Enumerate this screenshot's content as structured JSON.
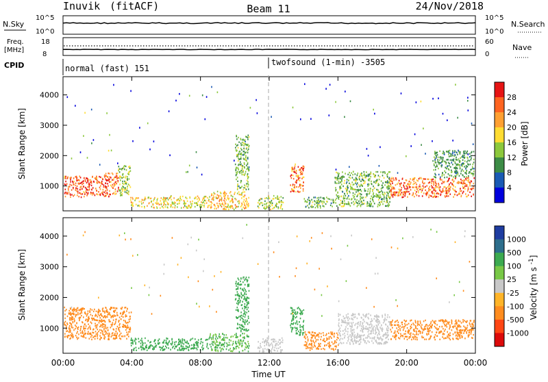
{
  "header": {
    "site": "Inuvik",
    "mode": "(fitACF)",
    "beam": "Beam 11",
    "date": "24/Nov/2018"
  },
  "top_panels": {
    "nsky_label": "N.Sky",
    "nsky_ticks": [
      "10^5",
      "10^0"
    ],
    "nsearch_label": "N.Search",
    "nsearch_ticks": [
      "10^5",
      "10^0"
    ],
    "freq_label_line1": "Freq.",
    "freq_label_line2": "[MHz]",
    "freq_ticks": [
      "18",
      "8"
    ],
    "nave_label": "Nave",
    "nave_ticks": [
      "60",
      "0"
    ],
    "cpid_label": "CPID",
    "cpid_segments": [
      {
        "name": "normal (fast) 151",
        "start_hour": 0
      },
      {
        "name": "twofsound (1-min) -3505",
        "start_hour": 12
      }
    ]
  },
  "chart_data": [
    {
      "type": "heatmap",
      "title": "Power",
      "xlabel": "",
      "ylabel": "Slant Range [km]",
      "xlim": [
        "00:00",
        "24:00"
      ],
      "ylim": [
        180,
        4600
      ],
      "yticks": [
        1000,
        2000,
        3000,
        4000
      ],
      "colorbar": {
        "label": "Power [dB]",
        "ticks": [
          28,
          24,
          20,
          16,
          12,
          8,
          4
        ],
        "range": [
          0,
          32
        ],
        "colors": [
          "#0000dd",
          "#1a5ab4",
          "#3c8c46",
          "#8cc83c",
          "#ffdc32",
          "#ffa032",
          "#ff6420",
          "#e61414"
        ]
      },
      "regions": [
        {
          "t": [
            0.05,
            1.2
          ],
          "r": [
            650,
            1350
          ],
          "value": 26
        },
        {
          "t": [
            1.2,
            2.1
          ],
          "r": [
            700,
            1350
          ],
          "value": 26
        },
        {
          "t": [
            2.1,
            3.2
          ],
          "r": [
            650,
            1450
          ],
          "value": 25
        },
        {
          "t": [
            3.2,
            3.9
          ],
          "r": [
            700,
            1700
          ],
          "value": 14
        },
        {
          "t": [
            3.9,
            6.2
          ],
          "r": [
            300,
            650
          ],
          "value": 18
        },
        {
          "t": [
            6.2,
            8.5
          ],
          "r": [
            300,
            700
          ],
          "value": 17
        },
        {
          "t": [
            8.5,
            10.8
          ],
          "r": [
            250,
            850
          ],
          "value": 20
        },
        {
          "t": [
            10.0,
            10.8
          ],
          "r": [
            900,
            2700
          ],
          "value": 13
        },
        {
          "t": [
            11.3,
            12.8
          ],
          "r": [
            250,
            700
          ],
          "value": 15
        },
        {
          "t": [
            13.2,
            14.0
          ],
          "r": [
            800,
            1700
          ],
          "value": 25
        },
        {
          "t": [
            14.0,
            15.8
          ],
          "r": [
            300,
            650
          ],
          "value": 12
        },
        {
          "t": [
            15.8,
            19.0
          ],
          "r": [
            350,
            1500
          ],
          "value": 13
        },
        {
          "t": [
            19.0,
            23.9
          ],
          "r": [
            650,
            1300
          ],
          "value": 25
        },
        {
          "t": [
            21.5,
            23.9
          ],
          "r": [
            1300,
            2200
          ],
          "value": 11
        }
      ]
    },
    {
      "type": "heatmap",
      "title": "Velocity",
      "xlabel": "Time UT",
      "ylabel": "Slant Range [km]",
      "xlim": [
        "00:00",
        "24:00"
      ],
      "xticks": [
        "00:00",
        "04:00",
        "08:00",
        "12:00",
        "16:00",
        "20:00",
        "00:00"
      ],
      "ylim": [
        180,
        4600
      ],
      "yticks": [
        1000,
        2000,
        3000,
        4000
      ],
      "colorbar": {
        "label": "Velocity [m s^-1]",
        "ticks": [
          "1000",
          "500",
          "100",
          "25",
          "-25",
          "-100",
          "-500",
          "-1000"
        ],
        "colors": [
          "#1e3ca0",
          "#2d6e8c",
          "#3caa50",
          "#78c846",
          "#c8c8c8",
          "#ffb428",
          "#ff8c1e",
          "#ff4614",
          "#dc0a0a"
        ]
      },
      "regions": [
        {
          "t": [
            0.05,
            3.9
          ],
          "r": [
            650,
            1700
          ],
          "value": -300
        },
        {
          "t": [
            3.9,
            8.5
          ],
          "r": [
            300,
            700
          ],
          "value": 200
        },
        {
          "t": [
            8.5,
            10.8
          ],
          "r": [
            250,
            850
          ],
          "value": 100
        },
        {
          "t": [
            10.0,
            10.8
          ],
          "r": [
            900,
            2700
          ],
          "value": 300
        },
        {
          "t": [
            11.3,
            12.8
          ],
          "r": [
            250,
            700
          ],
          "value": 0
        },
        {
          "t": [
            13.2,
            14.0
          ],
          "r": [
            800,
            1700
          ],
          "value": 300
        },
        {
          "t": [
            14.0,
            16.0
          ],
          "r": [
            300,
            900
          ],
          "value": -200
        },
        {
          "t": [
            16.0,
            19.0
          ],
          "r": [
            500,
            1500
          ],
          "value": 0
        },
        {
          "t": [
            19.0,
            23.9
          ],
          "r": [
            650,
            1300
          ],
          "value": -300
        }
      ]
    }
  ]
}
